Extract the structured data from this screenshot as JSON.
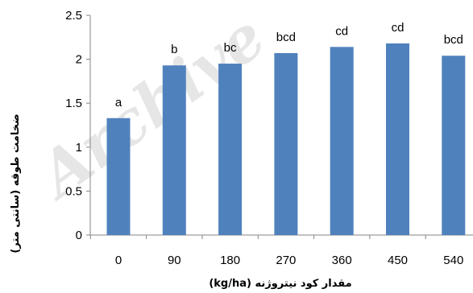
{
  "chart_data": {
    "type": "bar",
    "categories": [
      "0",
      "90",
      "180",
      "270",
      "360",
      "450",
      "540"
    ],
    "values": [
      1.33,
      1.93,
      1.95,
      2.07,
      2.14,
      2.18,
      2.04
    ],
    "bar_labels": [
      "a",
      "b",
      "bc",
      "bcd",
      "cd",
      "cd",
      "bcd"
    ],
    "title": "",
    "xlabel": "مقدار کود نیتروژنه (kg/ha)",
    "ylabel": "ضخامت طوقه (سانتی متر)",
    "ylim": [
      0,
      2.5
    ],
    "yticks": [
      "0",
      "0.5",
      "1",
      "1.5",
      "2",
      "2.5"
    ],
    "grid": false,
    "legend": "none",
    "bar_color": "#4f81bd",
    "axis_color": "#868686"
  },
  "watermark": "Archive"
}
